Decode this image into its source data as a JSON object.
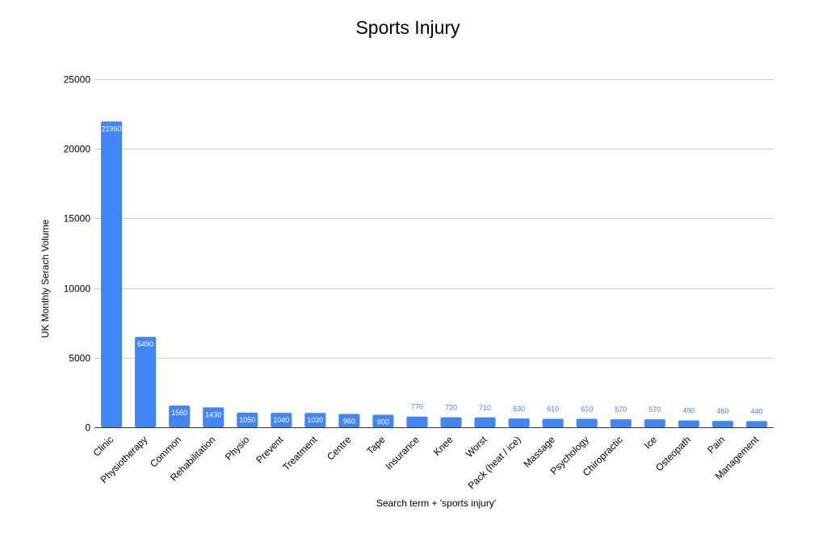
{
  "chart_data": {
    "type": "bar",
    "title": "Sports Injury",
    "xlabel": "Search term + 'sports injury'",
    "ylabel": "UK Monthly Serach Volume",
    "ylim": [
      0,
      25000
    ],
    "yticks": [
      0,
      5000,
      10000,
      15000,
      20000,
      25000
    ],
    "grid": true,
    "legend": "none",
    "bar_color": "#4285F4",
    "label_inside_color": "#ffffff",
    "label_outside_color": "#4285F4",
    "categories": [
      "Clinic",
      "Physiotherapy",
      "Common",
      "Rehabilitation",
      "Physio",
      "Prevent",
      "Treatment",
      "Centre",
      "Tape",
      "Insurance",
      "Knee",
      "Worst",
      "Pack (heat / ice)",
      "Massage",
      "Psychology",
      "Chiropractic",
      "Ice",
      "Osteopath",
      "Pain",
      "Management"
    ],
    "values": [
      21960,
      6490,
      1560,
      1430,
      1050,
      1040,
      1030,
      960,
      900,
      770,
      720,
      710,
      630,
      610,
      610,
      570,
      570,
      490,
      460,
      440
    ]
  }
}
